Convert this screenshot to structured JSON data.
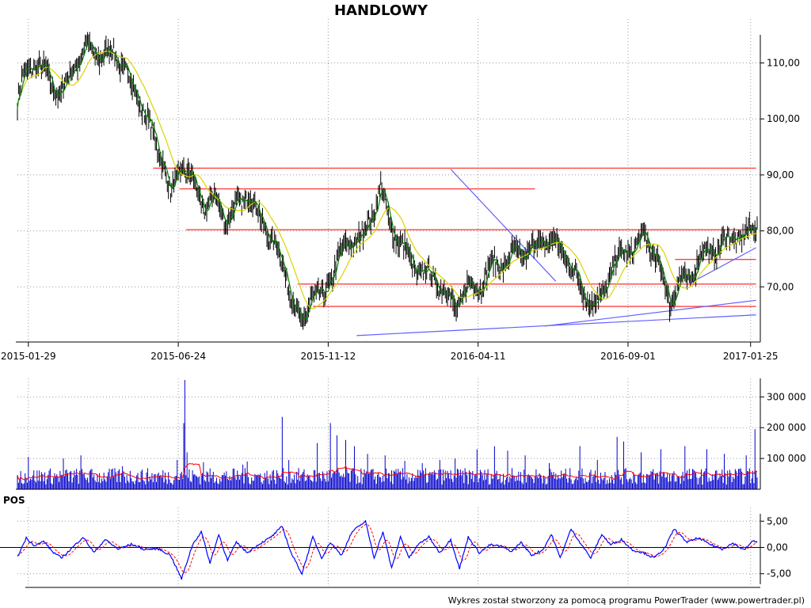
{
  "title": "HANDLOWY",
  "footer": "Wykres został stworzony za pomocą programu PowerTrader (www.powertrader.pl)",
  "colors": {
    "bars": "#000000",
    "ma_short": "#008000",
    "ma_long": "#d8d400",
    "support_resistance": "#ff4040",
    "trendline": "#6060ff",
    "volume": "#0000cc",
    "volume_avg": "#ff0000",
    "pos_line": "#0000ff",
    "pos_signal": "#ff0000"
  },
  "chart_data": [
    {
      "name": "price",
      "type": "ohlc",
      "x_ticks": [
        "2015-01-29",
        "2015-06-24",
        "2015-11-12",
        "2016-04-11",
        "2016-09-01",
        "2017-01-25"
      ],
      "y_ticks": [
        "110,00",
        "100,00",
        "90,00",
        "80,00",
        "70,00"
      ],
      "y_tick_values": [
        110,
        100,
        90,
        80,
        70
      ],
      "ylim": [
        61,
        117
      ],
      "grid": true,
      "anchors": [
        [
          0,
          103
        ],
        [
          6,
          108
        ],
        [
          16,
          110
        ],
        [
          26,
          108
        ],
        [
          40,
          104
        ],
        [
          50,
          109
        ],
        [
          64,
          113
        ],
        [
          76,
          111
        ],
        [
          88,
          112
        ],
        [
          100,
          108
        ],
        [
          110,
          104
        ],
        [
          122,
          98
        ],
        [
          134,
          92
        ],
        [
          140,
          86
        ],
        [
          150,
          92
        ],
        [
          160,
          89
        ],
        [
          170,
          84
        ],
        [
          180,
          86
        ],
        [
          190,
          82
        ],
        [
          200,
          84
        ],
        [
          212,
          87
        ],
        [
          222,
          82
        ],
        [
          234,
          78
        ],
        [
          244,
          73
        ],
        [
          256,
          65
        ],
        [
          260,
          62
        ],
        [
          268,
          69
        ],
        [
          280,
          68
        ],
        [
          292,
          75
        ],
        [
          304,
          78
        ],
        [
          316,
          79
        ],
        [
          326,
          84
        ],
        [
          332,
          88
        ],
        [
          340,
          81
        ],
        [
          350,
          78
        ],
        [
          364,
          73
        ],
        [
          378,
          72
        ],
        [
          392,
          69
        ],
        [
          400,
          66
        ],
        [
          410,
          70
        ],
        [
          422,
          70
        ],
        [
          434,
          74
        ],
        [
          444,
          74
        ],
        [
          454,
          76
        ],
        [
          466,
          76
        ],
        [
          478,
          78
        ],
        [
          490,
          78
        ],
        [
          500,
          76
        ],
        [
          510,
          72
        ],
        [
          520,
          68
        ],
        [
          526,
          67
        ],
        [
          534,
          68
        ],
        [
          544,
          74
        ],
        [
          554,
          76
        ],
        [
          564,
          77
        ],
        [
          574,
          79
        ],
        [
          584,
          75
        ],
        [
          592,
          70
        ],
        [
          596,
          67
        ],
        [
          604,
          71
        ],
        [
          614,
          71
        ],
        [
          624,
          76
        ],
        [
          634,
          76
        ],
        [
          644,
          78
        ],
        [
          654,
          79
        ],
        [
          664,
          79
        ],
        [
          671,
          80
        ],
        [
          676,
          82
        ]
      ],
      "moving_average_short": "green",
      "moving_average_long": "yellow",
      "horizontal_levels": [
        {
          "y": 91.2,
          "x_from": 124,
          "x_to": 675
        },
        {
          "y": 87.5,
          "x_from": 148,
          "x_to": 473
        },
        {
          "y": 80.2,
          "x_from": 154,
          "x_to": 675
        },
        {
          "y": 70.5,
          "x_from": 256,
          "x_to": 675
        },
        {
          "y": 66.5,
          "x_from": 270,
          "x_to": 675
        },
        {
          "y": 74.9,
          "x_from": 601,
          "x_to": 675
        }
      ],
      "trendlines": [
        {
          "from": [
            310,
            61.3
          ],
          "to": [
            675,
            65
          ]
        },
        {
          "from": [
            482,
            63
          ],
          "to": [
            675,
            67.6
          ]
        },
        {
          "from": [
            396,
            91
          ],
          "to": [
            492,
            71
          ]
        },
        {
          "from": [
            616,
            70.8
          ],
          "to": [
            675,
            77
          ]
        }
      ]
    },
    {
      "name": "volume",
      "type": "bar",
      "y_ticks": [
        "300 000",
        "200 000",
        "100 000"
      ],
      "y_tick_values": [
        300000,
        200000,
        100000
      ],
      "ylim": [
        0,
        360000
      ],
      "base_level": 60000,
      "average_line": "red",
      "spikes": [
        {
          "i": 10,
          "v": 105000
        },
        {
          "i": 42,
          "v": 100000
        },
        {
          "i": 58,
          "v": 110000
        },
        {
          "i": 96,
          "v": 75000
        },
        {
          "i": 146,
          "v": 95000
        },
        {
          "i": 152,
          "v": 215000
        },
        {
          "i": 153,
          "v": 355000
        },
        {
          "i": 155,
          "v": 120000
        },
        {
          "i": 170,
          "v": 88000
        },
        {
          "i": 206,
          "v": 80000
        },
        {
          "i": 210,
          "v": 90000
        },
        {
          "i": 242,
          "v": 235000
        },
        {
          "i": 248,
          "v": 95000
        },
        {
          "i": 274,
          "v": 150000
        },
        {
          "i": 286,
          "v": 215000
        },
        {
          "i": 292,
          "v": 175000
        },
        {
          "i": 300,
          "v": 160000
        },
        {
          "i": 308,
          "v": 140000
        },
        {
          "i": 320,
          "v": 115000
        },
        {
          "i": 336,
          "v": 110000
        },
        {
          "i": 354,
          "v": 92000
        },
        {
          "i": 370,
          "v": 85000
        },
        {
          "i": 386,
          "v": 95000
        },
        {
          "i": 400,
          "v": 100000
        },
        {
          "i": 420,
          "v": 130000
        },
        {
          "i": 436,
          "v": 140000
        },
        {
          "i": 448,
          "v": 125000
        },
        {
          "i": 464,
          "v": 110000
        },
        {
          "i": 486,
          "v": 85000
        },
        {
          "i": 514,
          "v": 140000
        },
        {
          "i": 530,
          "v": 95000
        },
        {
          "i": 548,
          "v": 170000
        },
        {
          "i": 554,
          "v": 155000
        },
        {
          "i": 570,
          "v": 120000
        },
        {
          "i": 588,
          "v": 130000
        },
        {
          "i": 610,
          "v": 140000
        },
        {
          "i": 630,
          "v": 130000
        },
        {
          "i": 646,
          "v": 115000
        },
        {
          "i": 666,
          "v": 110000
        },
        {
          "i": 674,
          "v": 195000
        }
      ]
    },
    {
      "name": "POS",
      "type": "line",
      "label": "POS",
      "y_ticks": [
        "5,00",
        "0,00",
        "-5,00"
      ],
      "y_tick_values": [
        5,
        0,
        -5
      ],
      "ylim": [
        -7,
        7
      ],
      "zero_line": true,
      "anchors": [
        [
          0,
          -1.8
        ],
        [
          8,
          1.8
        ],
        [
          16,
          0.3
        ],
        [
          24,
          1.2
        ],
        [
          32,
          -0.8
        ],
        [
          40,
          -2
        ],
        [
          48,
          -0.5
        ],
        [
          60,
          2
        ],
        [
          70,
          -1
        ],
        [
          80,
          1.5
        ],
        [
          92,
          -0.3
        ],
        [
          104,
          0.6
        ],
        [
          116,
          -0.4
        ],
        [
          128,
          -0.2
        ],
        [
          140,
          -1.5
        ],
        [
          150,
          -6
        ],
        [
          160,
          0.5
        ],
        [
          168,
          3
        ],
        [
          176,
          -3
        ],
        [
          184,
          2.5
        ],
        [
          192,
          -2.5
        ],
        [
          200,
          1
        ],
        [
          210,
          -1
        ],
        [
          220,
          0.5
        ],
        [
          232,
          2
        ],
        [
          242,
          4
        ],
        [
          250,
          -1
        ],
        [
          260,
          -5
        ],
        [
          270,
          2
        ],
        [
          278,
          -2
        ],
        [
          286,
          1
        ],
        [
          296,
          -1.5
        ],
        [
          306,
          3
        ],
        [
          318,
          5
        ],
        [
          326,
          -2
        ],
        [
          334,
          3
        ],
        [
          342,
          -4
        ],
        [
          350,
          2
        ],
        [
          358,
          -2
        ],
        [
          366,
          0.5
        ],
        [
          376,
          2
        ],
        [
          386,
          -1
        ],
        [
          396,
          1.5
        ],
        [
          404,
          -4
        ],
        [
          412,
          2
        ],
        [
          422,
          -1
        ],
        [
          432,
          0.5
        ],
        [
          442,
          0.2
        ],
        [
          452,
          -0.8
        ],
        [
          460,
          1
        ],
        [
          470,
          -1.5
        ],
        [
          480,
          -0.5
        ],
        [
          488,
          2.5
        ],
        [
          496,
          -2
        ],
        [
          506,
          3.5
        ],
        [
          514,
          1
        ],
        [
          524,
          -2
        ],
        [
          534,
          2.5
        ],
        [
          542,
          0.5
        ],
        [
          552,
          1.5
        ],
        [
          562,
          -0.5
        ],
        [
          572,
          -1
        ],
        [
          582,
          -2
        ],
        [
          592,
          0
        ],
        [
          600,
          3.5
        ],
        [
          612,
          1
        ],
        [
          622,
          1.8
        ],
        [
          634,
          0.5
        ],
        [
          644,
          -0.3
        ],
        [
          654,
          0.8
        ],
        [
          664,
          -0.5
        ],
        [
          672,
          1.2
        ]
      ]
    }
  ]
}
